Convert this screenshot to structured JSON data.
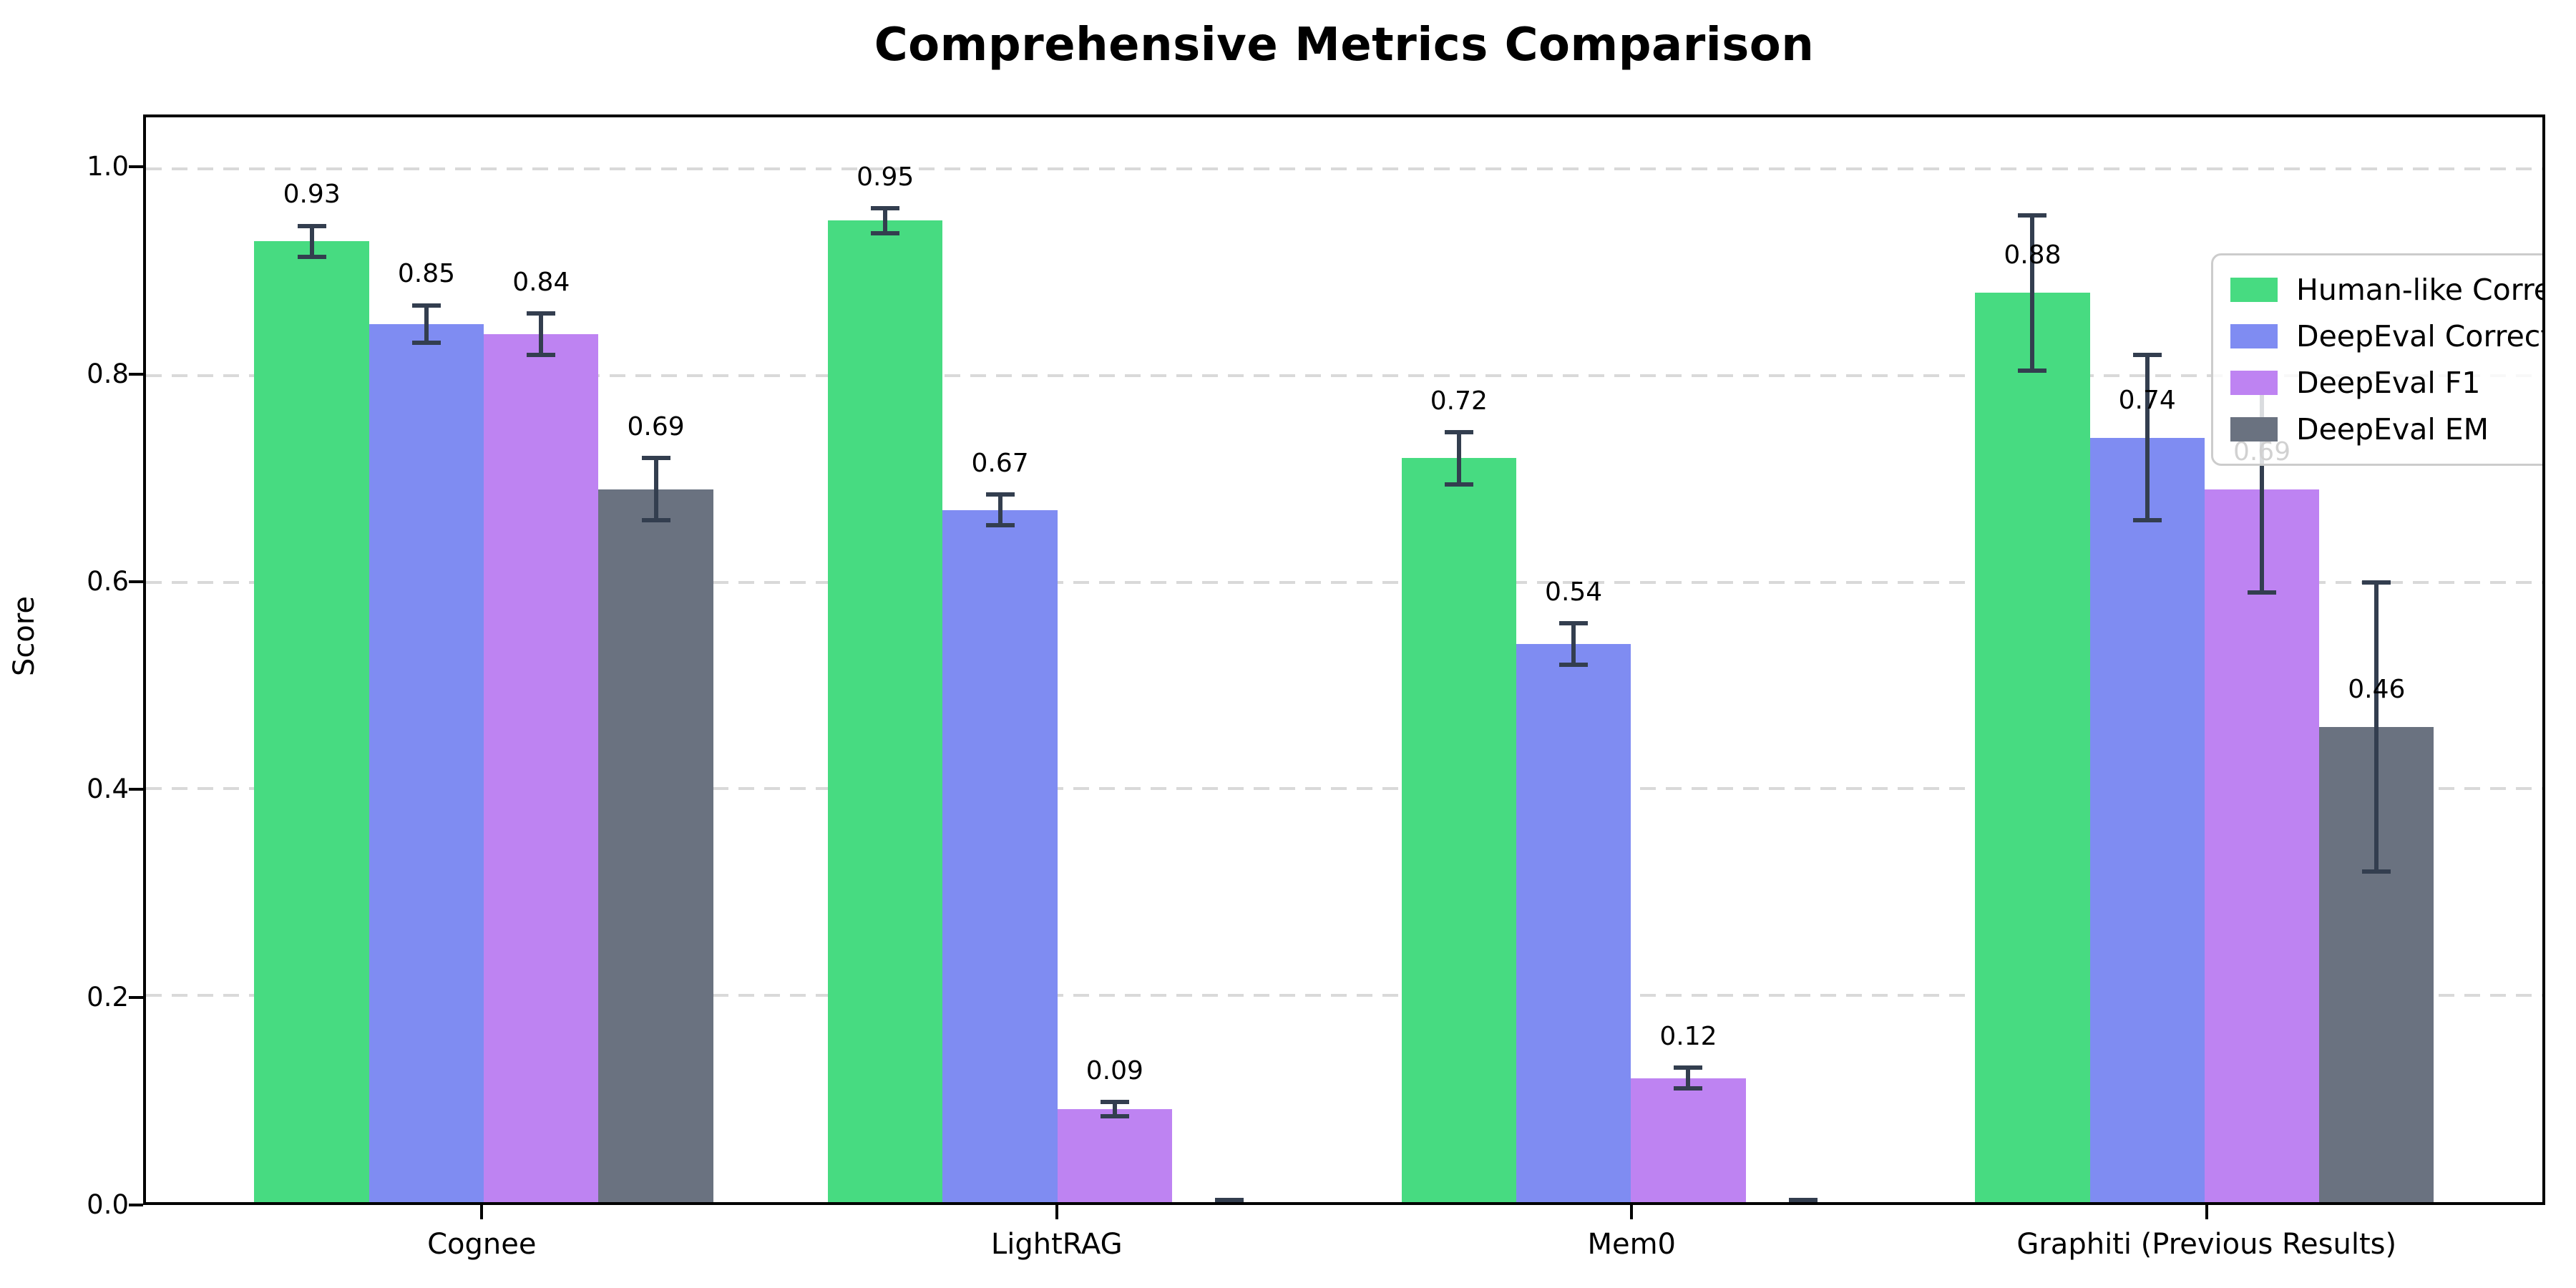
{
  "chart_data": {
    "type": "bar",
    "title": "Comprehensive Metrics Comparison",
    "ylabel": "Score",
    "xlabel": "",
    "ylim": [
      0,
      1.05
    ],
    "yticks": [
      0.0,
      0.2,
      0.4,
      0.6,
      0.8,
      1.0
    ],
    "grid": "horizontal dashed lines at each y tick, light gray",
    "legend_position": "upper right",
    "categories": [
      "Cognee",
      "LightRAG",
      "Mem0",
      "Graphiti (Previous Results)"
    ],
    "series": [
      {
        "name": "Human-like Correctness",
        "color": "#47db81",
        "values": [
          0.93,
          0.95,
          0.72,
          0.88
        ],
        "errors": [
          0.015,
          0.012,
          0.025,
          0.075
        ]
      },
      {
        "name": "DeepEval Correctness",
        "color": "#7f8cf2",
        "values": [
          0.85,
          0.67,
          0.54,
          0.74
        ],
        "errors": [
          0.018,
          0.015,
          0.02,
          0.08
        ]
      },
      {
        "name": "DeepEval F1",
        "color": "#be83f2",
        "values": [
          0.84,
          0.09,
          0.12,
          0.69
        ],
        "errors": [
          0.02,
          0.007,
          0.01,
          0.1
        ]
      },
      {
        "name": "DeepEval EM",
        "color": "#6a7280",
        "values": [
          0.69,
          0.0,
          0.0,
          0.46
        ],
        "errors": [
          0.03,
          0.002,
          0.002,
          0.14
        ]
      }
    ],
    "error_bar_color": "#333e4f",
    "bar_width_units": 0.2,
    "x_span_units": 4.178,
    "x_left_pad_units": 0.589
  }
}
